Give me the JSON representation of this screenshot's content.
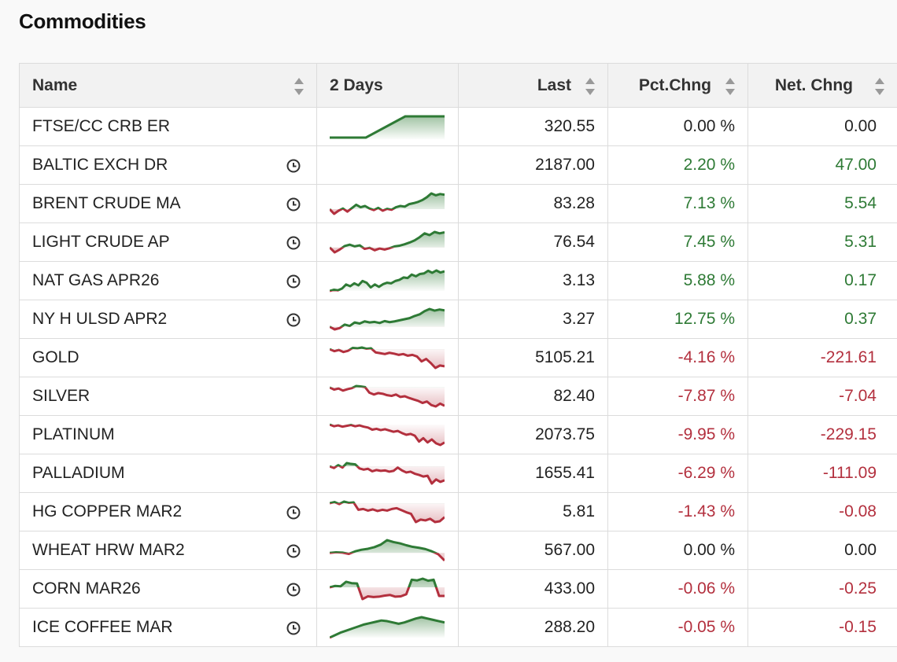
{
  "title": "Commodities",
  "columns": {
    "name": "Name",
    "chart": "2 Days",
    "last": "Last",
    "pct": "Pct.Chng",
    "net": "Net. Chng"
  },
  "colors": {
    "positive": "#2e7a35",
    "negative": "#b3303e",
    "neutral": "#222222"
  },
  "rows": [
    {
      "name": "FTSE/CC CRB ER",
      "clock": false,
      "last": "320.55",
      "pct": "0.00 %",
      "net": "0.00",
      "dir": "neu",
      "spark": [
        0,
        0,
        0,
        0,
        0,
        0,
        0,
        0,
        0,
        0,
        0,
        0,
        0,
        0,
        0,
        0,
        0,
        0,
        0,
        0,
        0,
        0,
        0,
        0,
        0,
        0,
        0,
        0,
        0,
        0,
        0,
        0,
        0,
        0,
        0,
        0,
        0,
        0,
        0,
        0,
        0,
        0,
        0,
        0,
        0,
        0,
        0,
        0,
        0,
        0
      ]
    },
    {
      "name": "BALTIC EXCH DR",
      "clock": true,
      "last": "2187.00",
      "pct": "2.20 %",
      "net": "47.00",
      "dir": "pos",
      "spark": []
    },
    {
      "name": "BRENT CRUDE MA",
      "clock": true,
      "last": "83.28",
      "pct": "7.13 %",
      "net": "5.54",
      "dir": "pos",
      "spark": [
        0,
        -1.5,
        -0.5,
        0.2,
        -0.8,
        0.3,
        1.4,
        0.6,
        1,
        0.2,
        -0.3,
        0.4,
        -0.5,
        0.1,
        -0.2,
        0.6,
        1,
        0.8,
        1.6,
        1.9,
        2.3,
        2.9,
        3.8,
        5,
        4.4,
        4.8,
        4.6
      ]
    },
    {
      "name": "LIGHT CRUDE AP",
      "clock": true,
      "last": "76.54",
      "pct": "7.45 %",
      "net": "5.31",
      "dir": "pos",
      "spark": [
        0,
        -1.4,
        -0.6,
        0.4,
        0.8,
        0.3,
        0.6,
        -0.4,
        -0.1,
        -0.8,
        -0.3,
        -0.6,
        -0.2,
        0.3,
        0.5,
        0.9,
        1.4,
        2,
        2.9,
        4,
        3.5,
        4.4,
        4,
        4.3
      ]
    },
    {
      "name": "NAT GAS APR26",
      "clock": true,
      "last": "3.13",
      "pct": "5.88 %",
      "net": "0.17",
      "dir": "pos",
      "spark": [
        0,
        0.4,
        0.2,
        0.8,
        2.2,
        1.6,
        2.6,
        1.9,
        3.4,
        2.8,
        1.2,
        2.2,
        1.4,
        2.3,
        2.8,
        2.6,
        3.4,
        3.8,
        4.6,
        4.4,
        5.6,
        5,
        5.8,
        6,
        6.9,
        6.2,
        7,
        6.3,
        6.7
      ]
    },
    {
      "name": "NY H ULSD APR2",
      "clock": true,
      "last": "3.27",
      "pct": "12.75 %",
      "net": "0.37",
      "dir": "pos",
      "spark": [
        0,
        -1,
        -0.5,
        0.8,
        0.3,
        1.6,
        1.2,
        2,
        1.6,
        1.8,
        1.4,
        2.1,
        1.7,
        2,
        2.4,
        2.8,
        3.2,
        4,
        4.6,
        5.8,
        6.6,
        6,
        6.4,
        6.1
      ]
    },
    {
      "name": "GOLD",
      "clock": false,
      "last": "5105.21",
      "pct": "-4.16 %",
      "net": "-221.61",
      "dir": "neg",
      "spark": [
        0,
        -0.5,
        -0.2,
        -0.7,
        -0.4,
        0.3,
        0.2,
        0.4,
        0.1,
        0.2,
        -0.8,
        -1,
        -1.2,
        -0.9,
        -1.1,
        -1.4,
        -1.2,
        -1.6,
        -1.4,
        -1.8,
        -3,
        -2.4,
        -3.4,
        -4.6,
        -4,
        -4.2
      ]
    },
    {
      "name": "SILVER",
      "clock": false,
      "last": "82.40",
      "pct": "-7.87 %",
      "net": "-7.04",
      "dir": "neg",
      "spark": [
        0,
        -0.6,
        -0.3,
        -0.9,
        -0.5,
        -0.2,
        0.4,
        0.3,
        0.1,
        -1.5,
        -2,
        -1.6,
        -1.8,
        -2.2,
        -2.4,
        -2,
        -2.7,
        -2.5,
        -3,
        -3.4,
        -3.8,
        -4.4,
        -4,
        -5,
        -5.4,
        -4.6,
        -5.2
      ]
    },
    {
      "name": "PLATINUM",
      "clock": false,
      "last": "2073.75",
      "pct": "-9.95 %",
      "net": "-229.15",
      "dir": "neg",
      "spark": [
        0,
        -0.4,
        -0.2,
        -0.5,
        -0.3,
        -0.1,
        -0.4,
        -0.2,
        -0.5,
        -0.7,
        -1.2,
        -1,
        -1.3,
        -1.1,
        -1.4,
        -1.7,
        -1.5,
        -2,
        -2.4,
        -2.2,
        -2.6,
        -4,
        -3.2,
        -4.2,
        -3.5,
        -4.4,
        -4.8,
        -4.2
      ]
    },
    {
      "name": "PALLADIUM",
      "clock": false,
      "last": "1655.41",
      "pct": "-6.29 %",
      "net": "-111.09",
      "dir": "neg",
      "spark": [
        0,
        -0.4,
        0.3,
        -0.3,
        0.8,
        0.6,
        0.5,
        -0.5,
        -0.8,
        -0.6,
        -1.2,
        -0.9,
        -1.1,
        -1,
        -1.3,
        -1.1,
        -0.3,
        -1,
        -1.5,
        -1.3,
        -1.8,
        -2.1,
        -2.5,
        -2.3,
        -4.2,
        -3.2,
        -3.8,
        -3.4
      ]
    },
    {
      "name": "HG COPPER MAR2",
      "clock": true,
      "last": "5.81",
      "pct": "-1.43 %",
      "net": "-0.08",
      "dir": "neg",
      "spark": [
        0,
        0.3,
        -0.2,
        0.4,
        0.1,
        0.2,
        -1.6,
        -1.4,
        -1.8,
        -1.5,
        -1.9,
        -1.6,
        -1.8,
        -1.4,
        -1.2,
        -1.7,
        -2.2,
        -2.6,
        -4.6,
        -4,
        -4.2,
        -3.8,
        -4.6,
        -4.4,
        -3.4
      ]
    },
    {
      "name": "WHEAT HRW MAR2",
      "clock": true,
      "last": "567.00",
      "pct": "0.00 %",
      "net": "0.00",
      "dir": "neu",
      "spark": [
        0,
        0.2,
        0.1,
        -0.3,
        0.5,
        1,
        1.3,
        1.8,
        2.6,
        4,
        3.4,
        3,
        2.4,
        1.9,
        1.6,
        1.2,
        0.5,
        -0.4,
        -2.4
      ]
    },
    {
      "name": "CORN MAR26",
      "clock": true,
      "last": "433.00",
      "pct": "-0.06 %",
      "net": "-0.25",
      "dir": "neg",
      "spark": [
        0,
        0.4,
        0.3,
        1.6,
        1.2,
        1.1,
        -3.4,
        -2.6,
        -2.8,
        -2.7,
        -2.4,
        -2.2,
        -2.7,
        -2.6,
        -2,
        2.2,
        2,
        2.5,
        1.9,
        2.2,
        -2.5,
        -2.5
      ]
    },
    {
      "name": "ICE COFFEE MAR",
      "clock": true,
      "last": "288.20",
      "pct": "-0.05 %",
      "net": "-0.15",
      "dir": "neg",
      "spark": [
        -2,
        -1.6,
        -1.2,
        -0.9,
        -0.6,
        -0.3,
        0,
        0.2,
        0.4,
        0.6,
        0.5,
        0.3,
        0.1,
        0.3,
        0.6,
        0.9,
        1.1,
        0.9,
        0.7,
        0.5,
        0.3
      ]
    }
  ]
}
